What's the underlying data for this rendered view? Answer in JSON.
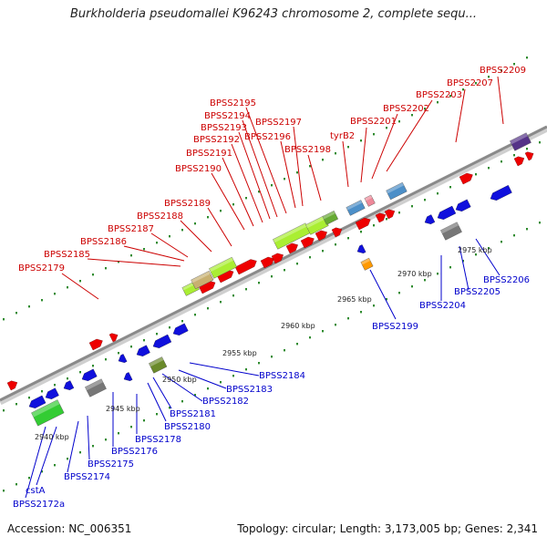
{
  "title": "Burkholderia pseudomallei K96243 chromosome 2, complete sequ...",
  "footer": {
    "accession": "Accession: NC_006351",
    "summary": "Topology: circular; Length: 3,173,005 bp; Genes: 2,341"
  },
  "colors": {
    "forward_label": "#cc0000",
    "reverse_label": "#0000cc",
    "backbone": "#8a8a8a",
    "tick": "#2e8b2e"
  },
  "kbp_ticks": [
    "2940 kbp",
    "2945 kbp",
    "2950 kbp",
    "2955 kbp",
    "2960 kbp",
    "2965 kbp",
    "2970 kbp",
    "2975 kbp"
  ],
  "forward_labels": [
    "BPSS2179",
    "BPSS2185",
    "BPSS2186",
    "BPSS2187",
    "BPSS2188",
    "BPSS2189",
    "BPSS2190",
    "BPSS2191",
    "BPSS2192",
    "BPSS2193",
    "BPSS2194",
    "BPSS2195",
    "BPSS2196",
    "BPSS2197",
    "BPSS2198",
    "tyrB2",
    "BPSS2201",
    "BPSS2202",
    "BPSS2203",
    "BPSS2207",
    "BPSS2209"
  ],
  "reverse_labels": [
    "BPSS2172a",
    "cstA",
    "BPSS2174",
    "BPSS2175",
    "BPSS2176",
    "BPSS2178",
    "BPSS2180",
    "BPSS2181",
    "BPSS2182",
    "BPSS2183",
    "BPSS2184",
    "BPSS2199",
    "BPSS2204",
    "BPSS2205",
    "BPSS2206"
  ]
}
